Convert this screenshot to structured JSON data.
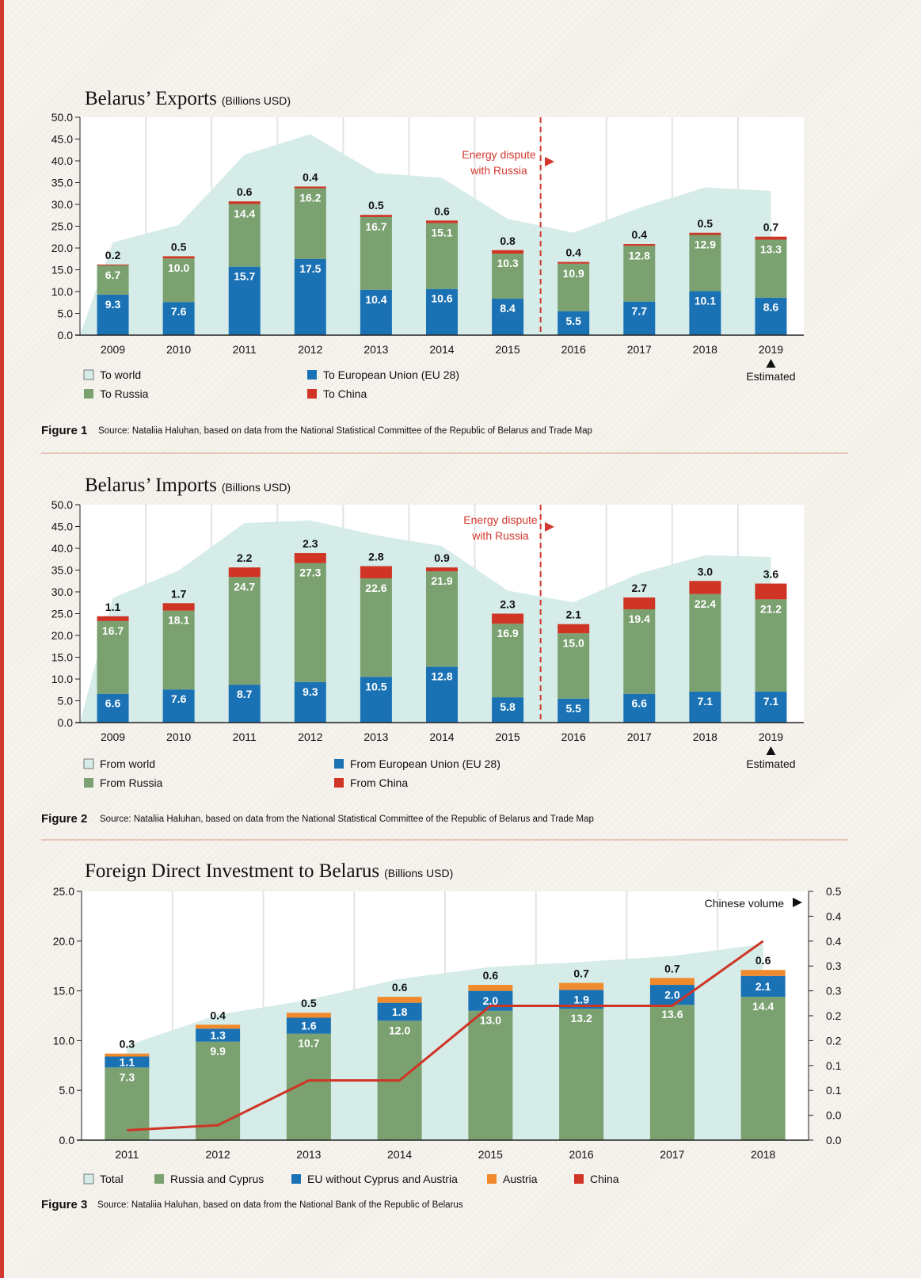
{
  "colors": {
    "world": "#d5ece9",
    "russia": "#7aa16f",
    "eu": "#1a72b5",
    "china": "#cf3425",
    "austria": "#f08a2c",
    "dispute": "#d2382e"
  },
  "figures": [
    {
      "title": "Belarus’ Exports",
      "unit": "(Billions USD)",
      "figure_label": "Figure 1",
      "source": "Source: Nataliia Haluhan, based on data from the National Statistical Committee of the Republic of Belarus and Trade Map",
      "annotation": [
        "Energy dispute",
        "with Russia"
      ],
      "estimated_label": "Estimated",
      "legend": {
        "world": "To world",
        "russia": "To Russia",
        "eu": "To European Union (EU 28)",
        "china": "To China"
      }
    },
    {
      "title": "Belarus’ Imports",
      "unit": "(Billions USD)",
      "figure_label": "Figure 2",
      "source": "Source: Nataliia Haluhan, based on data from the National Statistical Committee of the Republic of Belarus and Trade Map",
      "annotation": [
        "Energy dispute",
        "with Russia"
      ],
      "estimated_label": "Estimated",
      "legend": {
        "world": "From world",
        "russia": "From Russia",
        "eu": "From European Union (EU 28)",
        "china": "From China"
      }
    },
    {
      "title": "Foreign Direct Investment to Belarus",
      "unit": "(Billions USD)",
      "figure_label": "Figure 3",
      "source": "Source: Nataliia Haluhan, based on data from the National Bank of the Republic of Belarus",
      "annotation": [
        "Chinese volume"
      ],
      "legend": {
        "total": "Total",
        "russia": "Russia and Cyprus",
        "eu": "EU without Cyprus and Austria",
        "austria": "Austria",
        "china": "China"
      }
    }
  ],
  "chart_data": [
    {
      "type": "bar",
      "stacked": true,
      "title": "Belarus’ Exports",
      "ylabel": "",
      "ylim": [
        0,
        50
      ],
      "yticks": [
        "0.0",
        "5.0",
        "10.0",
        "15.0",
        "20.0",
        "25.0",
        "30.0",
        "35.0",
        "40.0",
        "45.0",
        "50.0"
      ],
      "categories": [
        "2009",
        "2010",
        "2011",
        "2012",
        "2013",
        "2014",
        "2015",
        "2016",
        "2017",
        "2018",
        "2019"
      ],
      "series": [
        {
          "name": "To European Union (EU 28)",
          "key": "eu",
          "values": [
            9.3,
            7.6,
            15.7,
            17.5,
            10.4,
            10.6,
            8.4,
            5.5,
            7.7,
            10.1,
            8.6
          ]
        },
        {
          "name": "To Russia",
          "key": "russia",
          "values": [
            6.7,
            10.0,
            14.4,
            16.2,
            16.7,
            15.1,
            10.3,
            10.9,
            12.8,
            12.9,
            13.3
          ]
        },
        {
          "name": "To China",
          "key": "china",
          "values": [
            0.2,
            0.5,
            0.6,
            0.4,
            0.5,
            0.6,
            0.8,
            0.4,
            0.4,
            0.5,
            0.7
          ]
        }
      ],
      "area": {
        "name": "To world",
        "values": [
          21.3,
          25.3,
          41.4,
          46.1,
          37.2,
          36.1,
          26.7,
          23.5,
          29.2,
          33.9,
          33.1
        ]
      },
      "dispute_year": "2016",
      "estimated_year": "2019",
      "grid": "vertical"
    },
    {
      "type": "bar",
      "stacked": true,
      "title": "Belarus’ Imports",
      "ylabel": "",
      "ylim": [
        0,
        50
      ],
      "yticks": [
        "0.0",
        "5.0",
        "10.0",
        "15.0",
        "20.0",
        "25.0",
        "30.0",
        "35.0",
        "40.0",
        "45.0",
        "50.0"
      ],
      "categories": [
        "2009",
        "2010",
        "2011",
        "2012",
        "2013",
        "2014",
        "2015",
        "2016",
        "2017",
        "2018",
        "2019"
      ],
      "series": [
        {
          "name": "From European Union (EU 28)",
          "key": "eu",
          "values": [
            6.6,
            7.6,
            8.7,
            9.3,
            10.5,
            12.8,
            5.8,
            5.5,
            6.6,
            7.1,
            7.1
          ]
        },
        {
          "name": "From Russia",
          "key": "russia",
          "values": [
            16.7,
            18.1,
            24.7,
            27.3,
            22.6,
            21.9,
            16.9,
            15.0,
            19.4,
            22.4,
            21.2
          ]
        },
        {
          "name": "From China",
          "key": "china",
          "values": [
            1.1,
            1.7,
            2.2,
            2.3,
            2.8,
            0.9,
            2.3,
            2.1,
            2.7,
            3.0,
            3.6
          ]
        }
      ],
      "area": {
        "name": "From world",
        "values": [
          28.6,
          34.9,
          45.8,
          46.4,
          43.0,
          40.5,
          30.3,
          27.6,
          34.2,
          38.4,
          38.0
        ]
      },
      "dispute_year": "2016",
      "estimated_year": "2019",
      "grid": "vertical"
    },
    {
      "type": "bar",
      "stacked": true,
      "title": "Foreign Direct Investment to Belarus",
      "ylabel": "",
      "ylim": [
        0,
        25
      ],
      "yticks": [
        "0.0",
        "5.0",
        "10.0",
        "15.0",
        "20.0",
        "25.0"
      ],
      "y2lim": [
        0,
        0.5
      ],
      "y2ticks": [
        "0.0",
        "0.0",
        "0.1",
        "0.1",
        "0.2",
        "0.2",
        "0.3",
        "0.3",
        "0.4",
        "0.4",
        "0.5"
      ],
      "categories": [
        "2011",
        "2012",
        "2013",
        "2014",
        "2015",
        "2016",
        "2017",
        "2018"
      ],
      "series": [
        {
          "name": "Russia and Cyprus",
          "key": "russia",
          "values": [
            7.3,
            9.9,
            10.7,
            12.0,
            13.0,
            13.2,
            13.6,
            14.4
          ]
        },
        {
          "name": "EU without Cyprus and Austria",
          "key": "eu",
          "values": [
            1.1,
            1.3,
            1.6,
            1.8,
            2.0,
            1.9,
            2.0,
            2.1
          ]
        },
        {
          "name": "Austria",
          "key": "austria",
          "values": [
            0.3,
            0.4,
            0.5,
            0.6,
            0.6,
            0.7,
            0.7,
            0.6
          ]
        }
      ],
      "area": {
        "name": "Total",
        "values": [
          9.5,
          12.6,
          14.1,
          16.2,
          17.4,
          17.9,
          18.5,
          19.7
        ]
      },
      "line": {
        "name": "China",
        "axis": "right",
        "values": [
          0.02,
          0.03,
          0.12,
          0.12,
          0.27,
          0.27,
          0.27,
          0.4
        ]
      },
      "grid": "vertical"
    }
  ]
}
